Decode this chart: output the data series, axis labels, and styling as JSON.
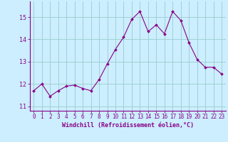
{
  "x": [
    0,
    1,
    2,
    3,
    4,
    5,
    6,
    7,
    8,
    9,
    10,
    11,
    12,
    13,
    14,
    15,
    16,
    17,
    18,
    19,
    20,
    21,
    22,
    23
  ],
  "y": [
    11.7,
    12.0,
    11.45,
    11.7,
    11.9,
    11.95,
    11.8,
    11.7,
    12.2,
    12.9,
    13.55,
    14.1,
    14.9,
    15.25,
    14.35,
    14.65,
    14.25,
    15.25,
    14.85,
    13.85,
    13.1,
    12.75,
    12.75,
    12.45
  ],
  "line_color": "#880088",
  "marker_color": "#880088",
  "bg_color": "#cceeff",
  "grid_color": "#99cccc",
  "axis_color": "#880088",
  "tick_color": "#880088",
  "xlabel": "Windchill (Refroidissement éolien,°C)",
  "xlabel_color": "#880088",
  "xlim": [
    -0.5,
    23.5
  ],
  "ylim": [
    10.8,
    15.7
  ],
  "xticks": [
    0,
    1,
    2,
    3,
    4,
    5,
    6,
    7,
    8,
    9,
    10,
    11,
    12,
    13,
    14,
    15,
    16,
    17,
    18,
    19,
    20,
    21,
    22,
    23
  ],
  "yticks": [
    11,
    12,
    13,
    14,
    15
  ],
  "tick_fontsize": 5.5,
  "xlabel_fontsize": 6.0
}
